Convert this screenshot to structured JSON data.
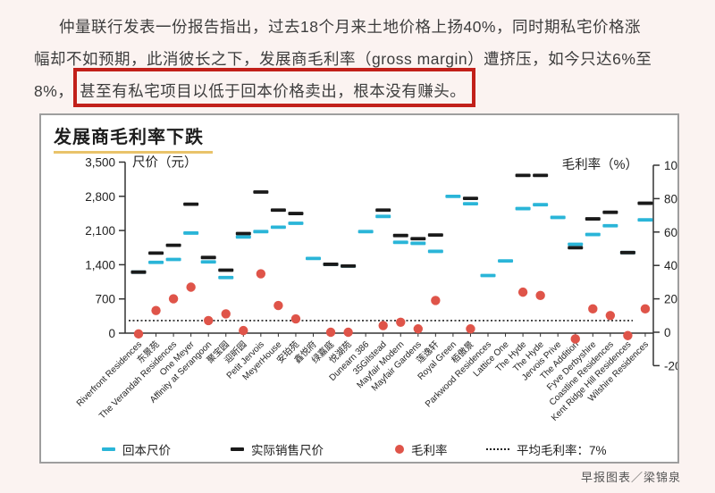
{
  "article": {
    "line1": "仲量联行发表一份报告指出，过去18个月来土地价格上扬40%，同时期私宅价格涨",
    "line2": "幅却不如预期，此消彼长之下，发展商毛利率（gross margin）遭挤压，如今只达6%至",
    "line3_prefix": "8%，",
    "line3_highlight": "甚至有私宅项目以低于回本价格卖出，根本没有赚头。"
  },
  "chart": {
    "title": "发展商毛利率下跌",
    "title_underline_color": "#e9c36a",
    "legend": {
      "breakeven": "回本尺价",
      "actual": "实际销售尺价",
      "margin": "毛利率",
      "average": "平均毛利率：7%"
    },
    "credit": "早报图表／梁锦泉",
    "highlight_box_color": "#c2201a"
  },
  "chart_data": {
    "type": "scatter",
    "title": "发展商毛利率下跌",
    "left_axis": {
      "label": "尺价（元）",
      "range": [
        0,
        3500
      ],
      "ticks": [
        {
          "value": 0,
          "label": "0"
        },
        {
          "value": 700,
          "label": "700"
        },
        {
          "value": 1400,
          "label": "1,400"
        },
        {
          "value": 2100,
          "label": "2,100"
        },
        {
          "value": 2800,
          "label": "2,800"
        },
        {
          "value": 3500,
          "label": "3,500"
        }
      ]
    },
    "right_axis": {
      "label": "毛利率（%）",
      "range": [
        -20,
        100
      ],
      "ticks": [
        {
          "value": -20,
          "label": "-20"
        },
        {
          "value": 0,
          "label": "0"
        },
        {
          "value": 20,
          "label": "20"
        },
        {
          "value": 40,
          "label": "40"
        },
        {
          "value": 60,
          "label": "60"
        },
        {
          "value": 80,
          "label": "80"
        },
        {
          "value": 100,
          "label": "100"
        }
      ]
    },
    "average_margin_line": {
      "label": "平均毛利率：7%",
      "value": 7,
      "style": "dotted"
    },
    "categories": [
      "Riverfront Residences",
      "东景苑",
      "The Verandah Residences",
      "One Meyer",
      "Affinity at Serangoon",
      "聚宝园",
      "迎昕园",
      "Petit Jervois",
      "MeyerHouse",
      "安珀苑",
      "鑫悦府",
      "绿嘉庭",
      "悦湖苑",
      "Dunearn 386",
      "35Gilstead",
      "Mayfair Modern",
      "Mayfair Gardens",
      "莲逸轩",
      "Royal Green",
      "栢傲景",
      "Parkwood Residences",
      "Lattice One",
      "The Hyde",
      "The Hyde",
      "Jervois Prive",
      "The Addition",
      "Fyve Derbyshire",
      "Coastline Residences",
      "Kent Ridge Hill Residences",
      "Wilshire Residences"
    ],
    "series": [
      {
        "name": "回本尺价",
        "marker": "dash",
        "color": "#2ab5d8",
        "axis": "left",
        "values": [
          1250,
          1450,
          1510,
          2050,
          1460,
          1140,
          1970,
          2080,
          2170,
          2250,
          1530,
          1410,
          1375,
          2080,
          2390,
          1860,
          1840,
          1675,
          2800,
          2650,
          1180,
          1480,
          2550,
          2630,
          2370,
          1820,
          2020,
          2200,
          1650,
          2320
        ]
      },
      {
        "name": "实际销售尺价",
        "marker": "dash",
        "color": "#1a1a1a",
        "axis": "left",
        "values": [
          1250,
          1640,
          1800,
          2640,
          1550,
          1290,
          2040,
          2890,
          2520,
          2450,
          null,
          1410,
          1375,
          null,
          2520,
          2000,
          1935,
          2010,
          null,
          2760,
          null,
          null,
          3230,
          3230,
          null,
          1750,
          2340,
          2475,
          1650,
          2660
        ]
      },
      {
        "name": "毛利率",
        "marker": "dot",
        "color": "#df5449",
        "axis": "right",
        "values": [
          -1,
          13,
          20,
          27,
          7,
          11,
          1,
          35,
          16,
          8,
          null,
          0,
          0,
          null,
          4,
          6,
          2,
          19,
          null,
          2,
          null,
          null,
          24,
          22,
          null,
          -4,
          14,
          10,
          -2,
          14
        ]
      }
    ]
  }
}
